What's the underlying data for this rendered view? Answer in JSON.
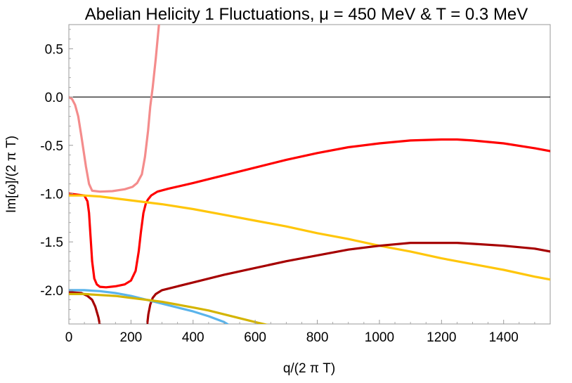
{
  "chart_data": {
    "type": "line",
    "title": "Abelian Helicity 1 Fluctuations, μ = 450 MeV & T = 0.3 MeV",
    "xlabel": "q/(2 π T)",
    "ylabel": "Im[ω]/(2 π T)",
    "xlim": [
      0,
      1550
    ],
    "ylim": [
      -2.35,
      0.75
    ],
    "xticks": [
      0,
      200,
      400,
      600,
      800,
      1000,
      1200,
      1400
    ],
    "yticks": [
      0.5,
      0.0,
      -0.5,
      -1.0,
      -1.5,
      -2.0
    ],
    "ytick_labels": [
      "0.5",
      "0.0",
      "-0.5",
      "-1.0",
      "-1.5",
      "-2.0"
    ],
    "grid": false,
    "legend": "none",
    "zero_line": {
      "y": 0,
      "color": "#000000"
    },
    "series": [
      {
        "color": "#f48c8c",
        "x": [
          0,
          10,
          20,
          30,
          40,
          55,
          65,
          75,
          100,
          140,
          180,
          205,
          220,
          235,
          245,
          255,
          262,
          270,
          280,
          290
        ],
        "y": [
          0.0,
          -0.02,
          -0.08,
          -0.2,
          -0.4,
          -0.72,
          -0.9,
          -0.97,
          -0.98,
          -0.975,
          -0.955,
          -0.93,
          -0.89,
          -0.8,
          -0.62,
          -0.35,
          -0.1,
          0.1,
          0.4,
          0.75
        ]
      },
      {
        "color": "#ff0000",
        "x": [
          0,
          50,
          60,
          65,
          70,
          75,
          82,
          90,
          100,
          120,
          150,
          180,
          200,
          215,
          225,
          232,
          240,
          248,
          255,
          265,
          285,
          320,
          400,
          500,
          600,
          700,
          800,
          900,
          1000,
          1100,
          1200,
          1250,
          1300,
          1400,
          1500,
          1550
        ],
        "y": [
          -1.0,
          -1.02,
          -1.08,
          -1.2,
          -1.45,
          -1.7,
          -1.88,
          -1.94,
          -1.965,
          -1.97,
          -1.96,
          -1.94,
          -1.9,
          -1.8,
          -1.6,
          -1.4,
          -1.2,
          -1.1,
          -1.06,
          -1.02,
          -0.98,
          -0.95,
          -0.89,
          -0.81,
          -0.73,
          -0.65,
          -0.58,
          -0.52,
          -0.48,
          -0.45,
          -0.44,
          -0.44,
          -0.45,
          -0.48,
          -0.53,
          -0.56
        ]
      },
      {
        "color": "#ffc60b",
        "x": [
          0,
          50,
          100,
          200,
          300,
          400,
          500,
          600,
          700,
          800,
          900,
          1000,
          1100,
          1200,
          1300,
          1400,
          1500,
          1550
        ],
        "y": [
          -1.02,
          -1.02,
          -1.03,
          -1.07,
          -1.11,
          -1.16,
          -1.22,
          -1.28,
          -1.34,
          -1.41,
          -1.47,
          -1.54,
          -1.6,
          -1.67,
          -1.73,
          -1.79,
          -1.86,
          -1.89
        ]
      },
      {
        "color": "#a60000",
        "x": [
          0,
          40,
          60,
          75,
          85,
          95,
          100
        ],
        "y": [
          -2.02,
          -2.03,
          -2.06,
          -2.1,
          -2.17,
          -2.28,
          -2.36
        ]
      },
      {
        "color": "#a60000",
        "x": [
          252,
          256,
          262,
          270,
          280,
          300,
          350,
          400,
          500,
          600,
          700,
          800,
          900,
          1000,
          1100,
          1200,
          1250,
          1300,
          1400,
          1500,
          1550
        ],
        "y": [
          -2.36,
          -2.25,
          -2.15,
          -2.08,
          -2.04,
          -2.0,
          -1.96,
          -1.92,
          -1.84,
          -1.77,
          -1.7,
          -1.64,
          -1.58,
          -1.54,
          -1.51,
          -1.51,
          -1.51,
          -1.52,
          -1.54,
          -1.57,
          -1.6
        ]
      },
      {
        "color": "#5ab4eb",
        "x": [
          0,
          50,
          100,
          150,
          200,
          250,
          300,
          350,
          400,
          450,
          500,
          515
        ],
        "y": [
          -2.0,
          -2.0,
          -2.01,
          -2.03,
          -2.06,
          -2.1,
          -2.14,
          -2.18,
          -2.22,
          -2.27,
          -2.33,
          -2.36
        ]
      },
      {
        "color": "#d4b400",
        "x": [
          0,
          50,
          100,
          150,
          200,
          250,
          300,
          350,
          400,
          450,
          500,
          550,
          600,
          640
        ],
        "y": [
          -2.04,
          -2.04,
          -2.05,
          -2.06,
          -2.08,
          -2.1,
          -2.12,
          -2.15,
          -2.18,
          -2.21,
          -2.25,
          -2.29,
          -2.33,
          -2.36
        ]
      }
    ]
  }
}
